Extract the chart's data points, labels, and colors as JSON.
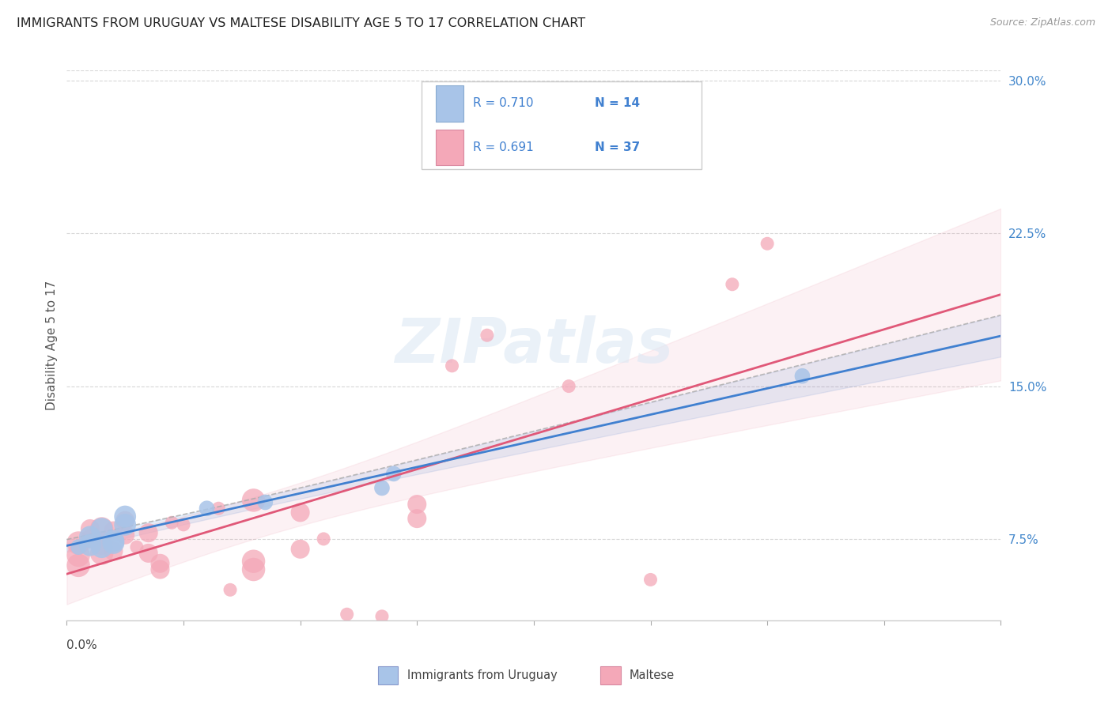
{
  "title": "IMMIGRANTS FROM URUGUAY VS MALTESE DISABILITY AGE 5 TO 17 CORRELATION CHART",
  "source": "Source: ZipAtlas.com",
  "ylabel": "Disability Age 5 to 17",
  "yticks_pct": [
    7.5,
    15.0,
    22.5,
    30.0
  ],
  "ytick_labels": [
    "7.5%",
    "15.0%",
    "22.5%",
    "30.0%"
  ],
  "xlim": [
    0.0,
    0.08
  ],
  "ylim": [
    0.035,
    0.305
  ],
  "watermark": "ZIPatlas",
  "uruguay_R": "0.710",
  "uruguay_N": "14",
  "maltese_R": "0.691",
  "maltese_N": "37",
  "uruguay_color": "#a8c4e8",
  "maltese_color": "#f4a8b8",
  "uruguay_line_color": "#4080d0",
  "maltese_line_color": "#e05878",
  "uruguay_x": [
    0.001,
    0.002,
    0.002,
    0.003,
    0.003,
    0.004,
    0.004,
    0.005,
    0.005,
    0.012,
    0.017,
    0.027,
    0.028,
    0.063
  ],
  "uruguay_y": [
    0.071,
    0.076,
    0.072,
    0.071,
    0.08,
    0.074,
    0.073,
    0.082,
    0.086,
    0.09,
    0.093,
    0.1,
    0.107,
    0.155
  ],
  "maltese_x": [
    0.001,
    0.001,
    0.001,
    0.002,
    0.002,
    0.003,
    0.003,
    0.003,
    0.004,
    0.004,
    0.005,
    0.005,
    0.006,
    0.007,
    0.007,
    0.008,
    0.008,
    0.009,
    0.01,
    0.013,
    0.014,
    0.016,
    0.016,
    0.016,
    0.02,
    0.02,
    0.022,
    0.024,
    0.027,
    0.03,
    0.03,
    0.033,
    0.036,
    0.043,
    0.05,
    0.057,
    0.06
  ],
  "maltese_y": [
    0.067,
    0.073,
    0.062,
    0.08,
    0.075,
    0.073,
    0.068,
    0.08,
    0.079,
    0.069,
    0.084,
    0.077,
    0.071,
    0.078,
    0.068,
    0.063,
    0.06,
    0.083,
    0.082,
    0.09,
    0.05,
    0.094,
    0.064,
    0.06,
    0.088,
    0.07,
    0.075,
    0.038,
    0.037,
    0.092,
    0.085,
    0.16,
    0.175,
    0.15,
    0.055,
    0.2,
    0.22
  ],
  "background_color": "#ffffff",
  "grid_color": "#d8d8d8"
}
